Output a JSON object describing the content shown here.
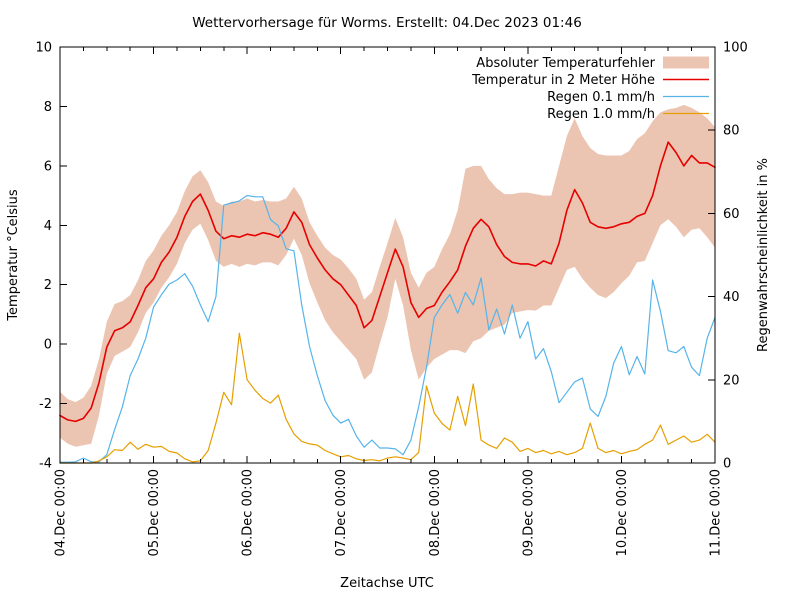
{
  "title": "Wettervorhersage für Worms. Erstellt: 04.Dec 2023 01:46",
  "axes": {
    "x_label": "Zeitachse UTC",
    "y_left_label": "Temperatur °Celsius",
    "y_right_label": "Regenwahrscheinlichkeit in %"
  },
  "chart_data": {
    "type": "line",
    "title": "Wettervorhersage für Worms. Erstellt: 04.Dec 2023 01:46",
    "xlabel": "Zeitachse UTC",
    "x_unit": "hours since 04.Dec 00:00 UTC",
    "sample_step_hours": 2,
    "x_range_hours": [
      0,
      168
    ],
    "x_tick_labels": [
      "04.Dec 00:00",
      "05.Dec 00:00",
      "06.Dec 00:00",
      "07.Dec 00:00",
      "08.Dec 00:00",
      "09.Dec 00:00",
      "10.Dec 00:00",
      "11.Dec 00:00"
    ],
    "x_major_every_hours": 24,
    "x_minor_every_hours": 6,
    "grid": false,
    "legend_position": "top-right-inside",
    "y_left": {
      "label": "Temperatur °Celsius",
      "min": -4,
      "max": 10,
      "ticks": [
        -4,
        -2,
        0,
        2,
        4,
        6,
        8,
        10
      ]
    },
    "y_right": {
      "label": "Regenwahrscheinlichkeit in %",
      "min": 0,
      "max": 100,
      "ticks": [
        0,
        20,
        40,
        60,
        80,
        100
      ]
    },
    "series": [
      {
        "name": "Absoluter Temperaturfehler",
        "slug": "error-band",
        "type": "band",
        "axis": "left",
        "color": "#ecc5b2",
        "upper": [
          -1.6,
          -1.85,
          -1.95,
          -1.8,
          -1.4,
          -0.5,
          0.75,
          1.35,
          1.45,
          1.65,
          2.15,
          2.8,
          3.15,
          3.65,
          4.0,
          4.45,
          5.15,
          5.65,
          5.85,
          5.45,
          4.8,
          4.65,
          4.8,
          4.8,
          4.9,
          4.8,
          4.85,
          4.8,
          4.8,
          4.9,
          5.3,
          4.9,
          4.1,
          3.65,
          3.25,
          3.0,
          2.85,
          2.55,
          2.2,
          1.5,
          1.75,
          2.6,
          3.4,
          4.25,
          3.6,
          2.4,
          1.9,
          2.4,
          2.6,
          3.2,
          3.7,
          4.5,
          5.9,
          6.0,
          6.0,
          5.55,
          5.25,
          5.05,
          5.05,
          5.1,
          5.1,
          5.05,
          5.0,
          5.0,
          6.0,
          7.0,
          7.6,
          7.0,
          6.6,
          6.4,
          6.35,
          6.35,
          6.35,
          6.5,
          6.9,
          7.1,
          7.5,
          7.8,
          7.9,
          7.95,
          8.05,
          7.95,
          7.8,
          7.6,
          7.3
        ],
        "lower": [
          -3.15,
          -3.35,
          -3.45,
          -3.4,
          -3.35,
          -2.4,
          -1.0,
          -0.4,
          -0.25,
          -0.1,
          0.4,
          1.05,
          1.4,
          1.9,
          2.25,
          2.7,
          3.4,
          3.85,
          4.05,
          3.5,
          2.8,
          2.6,
          2.7,
          2.6,
          2.7,
          2.65,
          2.75,
          2.75,
          2.65,
          3.0,
          3.55,
          3.0,
          2.05,
          1.4,
          0.8,
          0.4,
          0.1,
          -0.2,
          -0.5,
          -1.2,
          -0.95,
          0.0,
          0.9,
          2.2,
          1.3,
          -0.2,
          -1.2,
          -0.8,
          -0.5,
          -0.35,
          -0.2,
          -0.2,
          -0.3,
          0.1,
          0.2,
          0.45,
          0.55,
          0.65,
          1.05,
          1.1,
          1.15,
          1.13,
          1.3,
          1.3,
          1.9,
          2.5,
          2.6,
          2.2,
          1.9,
          1.65,
          1.55,
          1.75,
          2.05,
          2.3,
          2.75,
          2.8,
          3.4,
          4.0,
          4.2,
          3.95,
          3.6,
          3.85,
          3.9,
          3.6,
          3.25
        ]
      },
      {
        "name": "Temperatur in 2 Meter Höhe",
        "slug": "temperature",
        "type": "line",
        "axis": "left",
        "color": "#e60000",
        "width": 1.6,
        "values": [
          -2.4,
          -2.55,
          -2.6,
          -2.5,
          -2.15,
          -1.3,
          -0.1,
          0.45,
          0.55,
          0.75,
          1.3,
          1.9,
          2.2,
          2.75,
          3.1,
          3.6,
          4.3,
          4.8,
          5.05,
          4.5,
          3.8,
          3.55,
          3.65,
          3.6,
          3.7,
          3.65,
          3.75,
          3.7,
          3.6,
          3.9,
          4.45,
          4.1,
          3.35,
          2.9,
          2.5,
          2.2,
          2.0,
          1.65,
          1.3,
          0.55,
          0.8,
          1.6,
          2.4,
          3.2,
          2.6,
          1.4,
          0.9,
          1.2,
          1.3,
          1.75,
          2.1,
          2.5,
          3.3,
          3.9,
          4.2,
          3.95,
          3.35,
          2.95,
          2.75,
          2.7,
          2.7,
          2.63,
          2.8,
          2.7,
          3.4,
          4.5,
          5.2,
          4.75,
          4.1,
          3.95,
          3.9,
          3.95,
          4.05,
          4.1,
          4.3,
          4.4,
          5.0,
          6.0,
          6.8,
          6.45,
          6.0,
          6.35,
          6.1,
          6.1,
          5.95
        ]
      },
      {
        "name": "Regen 0.1 mm/h",
        "slug": "rain-01",
        "type": "line",
        "axis": "right",
        "color": "#56b4e9",
        "width": 1.2,
        "values": [
          0.2,
          0.2,
          0.3,
          1.2,
          0.3,
          0.3,
          2,
          8,
          13.5,
          21,
          25,
          30,
          37.5,
          40.4,
          43,
          44,
          45.5,
          42.5,
          38,
          34,
          40,
          62,
          62.5,
          63,
          64.3,
          64,
          64,
          58.5,
          57,
          51.5,
          51,
          38,
          28,
          21,
          15,
          11.5,
          9.6,
          10.5,
          6.5,
          3.8,
          5.5,
          3.6,
          3.6,
          3.4,
          2.0,
          5.5,
          13.5,
          23,
          35,
          38,
          40.5,
          36,
          41,
          38,
          44.5,
          32,
          37,
          31,
          38,
          30,
          34,
          25,
          27.5,
          22,
          14.5,
          17,
          19.5,
          20.4,
          13,
          11.2,
          16,
          24,
          28,
          21.2,
          25.6,
          21.4,
          44,
          36.5,
          27,
          26.5,
          28,
          23,
          21,
          30,
          35
        ]
      },
      {
        "name": "Regen 1.0 mm/h",
        "slug": "rain-10",
        "type": "line",
        "axis": "right",
        "color": "#e69f00",
        "width": 1.2,
        "values": [
          0,
          0,
          0,
          0,
          0,
          0.5,
          1.5,
          3.2,
          3.0,
          5.0,
          3.3,
          4.5,
          3.8,
          4.0,
          2.8,
          2.4,
          1.0,
          0.3,
          0.5,
          3.0,
          9.6,
          17,
          14,
          31.2,
          20,
          17.5,
          15.5,
          14.4,
          16.3,
          10.5,
          7,
          5.2,
          4.6,
          4.3,
          3.0,
          2.2,
          1.5,
          1.8,
          1.0,
          0.6,
          0.8,
          0.5,
          1.2,
          1.5,
          1.2,
          0.8,
          2.5,
          18.5,
          12,
          9.5,
          7.9,
          16,
          9,
          19,
          5.5,
          4.3,
          3.5,
          6.0,
          5.0,
          2.8,
          3.5,
          2.5,
          3.0,
          2.2,
          2.8,
          2.0,
          2.5,
          3.5,
          9.6,
          3.5,
          2.5,
          3.0,
          2.2,
          2.8,
          3.2,
          4.5,
          5.5,
          9.1,
          4.5,
          5.5,
          6.5,
          5.0,
          5.5,
          6.9,
          5.0
        ]
      }
    ]
  }
}
